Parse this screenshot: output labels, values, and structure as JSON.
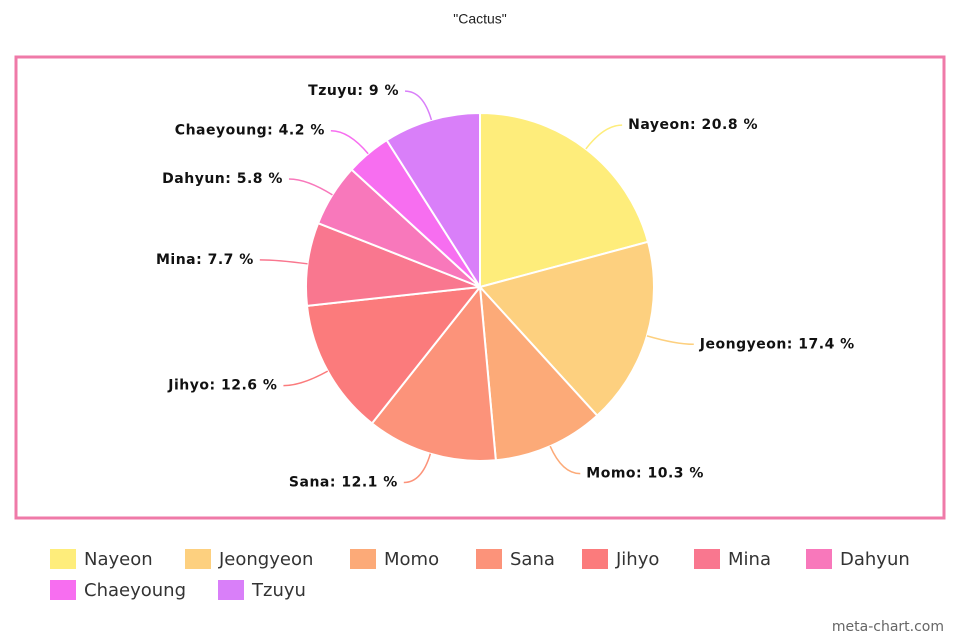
{
  "chart_data": {
    "type": "pie",
    "title": "\"Cactus\"",
    "categories": [
      "Nayeon",
      "Jeongyeon",
      "Momo",
      "Sana",
      "Jihyo",
      "Mina",
      "Dahyun",
      "Chaeyoung",
      "Tzuyu"
    ],
    "values": [
      20.8,
      17.4,
      10.3,
      12.1,
      12.6,
      7.7,
      5.8,
      4.2,
      9
    ],
    "value_labels": [
      "Nayeon: 20.8 %",
      "Jeongyeon: 17.4 %",
      "Momo: 10.3 %",
      "Sana: 12.1 %",
      "Jihyo: 12.6 %",
      "Mina: 7.7 %",
      "Dahyun: 5.8 %",
      "Chaeyoung: 4.2 %",
      "Tzuyu: 9 %"
    ],
    "colors": [
      "#feed7b",
      "#fdd07f",
      "#fcaa78",
      "#fc937a",
      "#fb7b7c",
      "#f9778f",
      "#f878bb",
      "#f76ef0",
      "#d97ff9"
    ],
    "legend": "bottom"
  },
  "watermark": "meta-chart.com"
}
